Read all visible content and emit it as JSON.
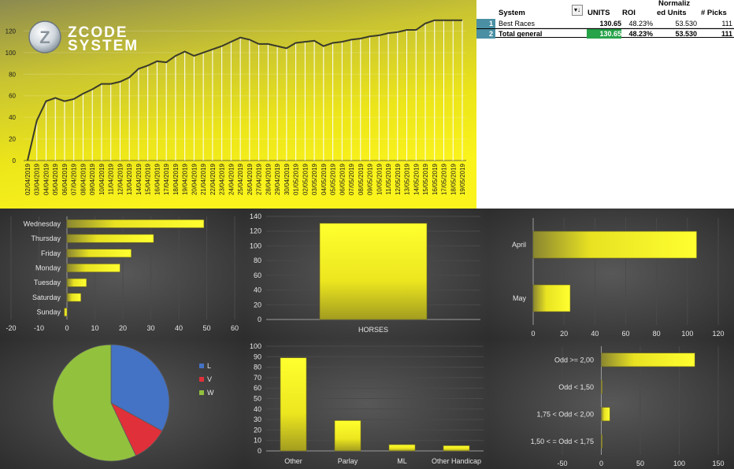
{
  "logo": {
    "line1": "ZCODE",
    "line2": "SYSTEM"
  },
  "line_chart": {
    "type": "line",
    "ylim": [
      0,
      140
    ],
    "yticks": [
      0,
      20,
      40,
      60,
      80,
      100,
      120
    ],
    "x": [
      "02/04/2019",
      "03/04/2019",
      "04/04/2019",
      "05/04/2019",
      "06/04/2019",
      "07/04/2019",
      "08/04/2019",
      "09/04/2019",
      "10/04/2019",
      "11/04/2019",
      "12/04/2019",
      "13/04/2019",
      "14/04/2019",
      "15/04/2019",
      "16/04/2019",
      "17/04/2019",
      "18/04/2019",
      "19/04/2019",
      "20/04/2019",
      "21/04/2019",
      "22/04/2019",
      "23/04/2019",
      "24/04/2019",
      "25/04/2019",
      "26/04/2019",
      "27/04/2019",
      "28/04/2019",
      "29/04/2019",
      "30/04/2019",
      "01/05/2019",
      "02/05/2019",
      "03/05/2019",
      "04/05/2019",
      "05/05/2019",
      "06/05/2019",
      "07/05/2019",
      "08/05/2019",
      "09/05/2019",
      "10/05/2019",
      "11/05/2019",
      "12/05/2019",
      "13/05/2019",
      "14/05/2019",
      "15/05/2019",
      "16/05/2019",
      "17/05/2019",
      "18/05/2019",
      "19/05/2019"
    ],
    "y": [
      0,
      37,
      55,
      58,
      55,
      57,
      62,
      66,
      71,
      71,
      73,
      77,
      85,
      88,
      92,
      91,
      97,
      101,
      97,
      100,
      103,
      106,
      110,
      114,
      112,
      108,
      108,
      106,
      104,
      109,
      110,
      111,
      106,
      109,
      110,
      112,
      113,
      115,
      116,
      118,
      119,
      121,
      121,
      127,
      130,
      130,
      130,
      130
    ]
  },
  "pivot_table": {
    "headers": {
      "system": "System",
      "units": "UNITS",
      "roi": "ROI",
      "normalized_1": "Normaliz",
      "normalized_2": "ed Units",
      "picks": "# Picks"
    },
    "filter_icon": "sort-filter-icon",
    "rows": [
      {
        "num": "1",
        "system": "Best Races",
        "units": "130.65",
        "roi": "48.23%",
        "normalized": "53.530",
        "picks": "111"
      },
      {
        "num": "2",
        "system": "Total general",
        "units": "130.65",
        "roi": "48.23%",
        "normalized": "53.530",
        "picks": "111"
      }
    ]
  },
  "chart_data": [
    {
      "type": "bar",
      "orientation": "horizontal",
      "categories": [
        "Wednesday",
        "Thursday",
        "Friday",
        "Monday",
        "Tuesday",
        "Saturday",
        "Sunday"
      ],
      "values": [
        49,
        31,
        23,
        19,
        7,
        5,
        -1
      ],
      "xlim": [
        -20,
        60
      ],
      "xticks": [
        "-20",
        "-10",
        "0",
        "10",
        "20",
        "30",
        "40",
        "50",
        "60"
      ]
    },
    {
      "type": "bar",
      "orientation": "vertical",
      "categories": [
        "HORSES"
      ],
      "values": [
        130.65
      ],
      "ylim": [
        0,
        140
      ],
      "yticks": [
        "0",
        "20",
        "40",
        "60",
        "80",
        "100",
        "120",
        "140"
      ]
    },
    {
      "type": "bar",
      "orientation": "horizontal",
      "categories": [
        "April",
        "May"
      ],
      "values": [
        106,
        24
      ],
      "xlim": [
        0,
        120
      ],
      "xticks": [
        "0",
        "20",
        "40",
        "60",
        "80",
        "100",
        "120"
      ]
    },
    {
      "type": "pie",
      "legend": "right",
      "categories": [
        "L",
        "V",
        "W"
      ],
      "values": [
        33,
        10,
        57
      ],
      "colors": [
        "#4472c4",
        "#e0303a",
        "#92c13e"
      ]
    },
    {
      "type": "bar",
      "orientation": "vertical",
      "categories": [
        "Other",
        "Parlay",
        "ML",
        "Other Handicap"
      ],
      "values": [
        89,
        29,
        6,
        5
      ],
      "ylim": [
        0,
        100
      ],
      "yticks": [
        "0",
        "10",
        "20",
        "30",
        "40",
        "50",
        "60",
        "70",
        "80",
        "90",
        "100"
      ]
    },
    {
      "type": "bar",
      "orientation": "horizontal",
      "categories": [
        "Odd >= 2,00",
        "Odd < 1,50",
        "1,75 < Odd < 2,00",
        "1,50 < = Odd < 1,75"
      ],
      "values": [
        120,
        0.5,
        11,
        0
      ],
      "xlim": [
        -50,
        150
      ],
      "xticks": [
        "-50",
        "0",
        "50",
        "100",
        "150"
      ]
    }
  ]
}
